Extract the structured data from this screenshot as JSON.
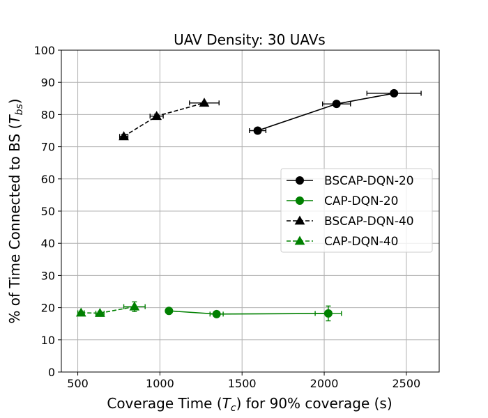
{
  "chart_data": {
    "type": "line",
    "title": "UAV Density: 30 UAVs",
    "xlabel": "Coverage Time (T_c) for 90% coverage (s)",
    "xlabel_prefix": "Coverage Time (",
    "xlabel_var": "T",
    "xlabel_sub": "c",
    "xlabel_suffix": ") for 90% coverage (s)",
    "ylabel": "% of Time Connected to BS (T_bs)",
    "ylabel_prefix": "% of Time Connected to BS (",
    "ylabel_var": "T",
    "ylabel_sub": "bs",
    "ylabel_suffix": ")",
    "xlim": [
      400,
      2700
    ],
    "ylim": [
      0,
      100
    ],
    "xticks": [
      500,
      1000,
      1500,
      2000,
      2500
    ],
    "yticks": [
      0,
      10,
      20,
      30,
      40,
      50,
      60,
      70,
      80,
      90,
      100
    ],
    "grid": true,
    "legend_position": "center-right",
    "series": [
      {
        "name": "BSCAP-DQN-20",
        "color": "#000000",
        "marker": "circle",
        "linestyle": "solid",
        "points": [
          {
            "x": 1595,
            "y": 75.0,
            "xerr": 50,
            "yerr": 0.4
          },
          {
            "x": 2075,
            "y": 83.3,
            "xerr": 85,
            "yerr": 0.4
          },
          {
            "x": 2425,
            "y": 86.6,
            "xerr": 165,
            "yerr": 0.3
          }
        ]
      },
      {
        "name": "CAP-DQN-20",
        "color": "#008000",
        "marker": "circle",
        "linestyle": "solid",
        "points": [
          {
            "x": 1055,
            "y": 19.0,
            "xerr": 10,
            "yerr": 0.5
          },
          {
            "x": 1345,
            "y": 18.0,
            "xerr": 40,
            "yerr": 0.5
          },
          {
            "x": 2025,
            "y": 18.2,
            "xerr": 80,
            "yerr": 2.3
          }
        ]
      },
      {
        "name": "BSCAP-DQN-40",
        "color": "#000000",
        "marker": "triangle",
        "linestyle": "dashed",
        "points": [
          {
            "x": 780,
            "y": 73.2,
            "xerr": 25,
            "yerr": 0.6
          },
          {
            "x": 980,
            "y": 79.5,
            "xerr": 40,
            "yerr": 0.6
          },
          {
            "x": 1270,
            "y": 83.6,
            "xerr": 90,
            "yerr": 0.3
          }
        ]
      },
      {
        "name": "CAP-DQN-40",
        "color": "#008000",
        "marker": "triangle",
        "linestyle": "dashed",
        "points": [
          {
            "x": 520,
            "y": 18.4,
            "xerr": 20,
            "yerr": 0.5
          },
          {
            "x": 635,
            "y": 18.3,
            "xerr": 25,
            "yerr": 0.5
          },
          {
            "x": 845,
            "y": 20.3,
            "xerr": 65,
            "yerr": 1.5
          }
        ]
      }
    ]
  }
}
